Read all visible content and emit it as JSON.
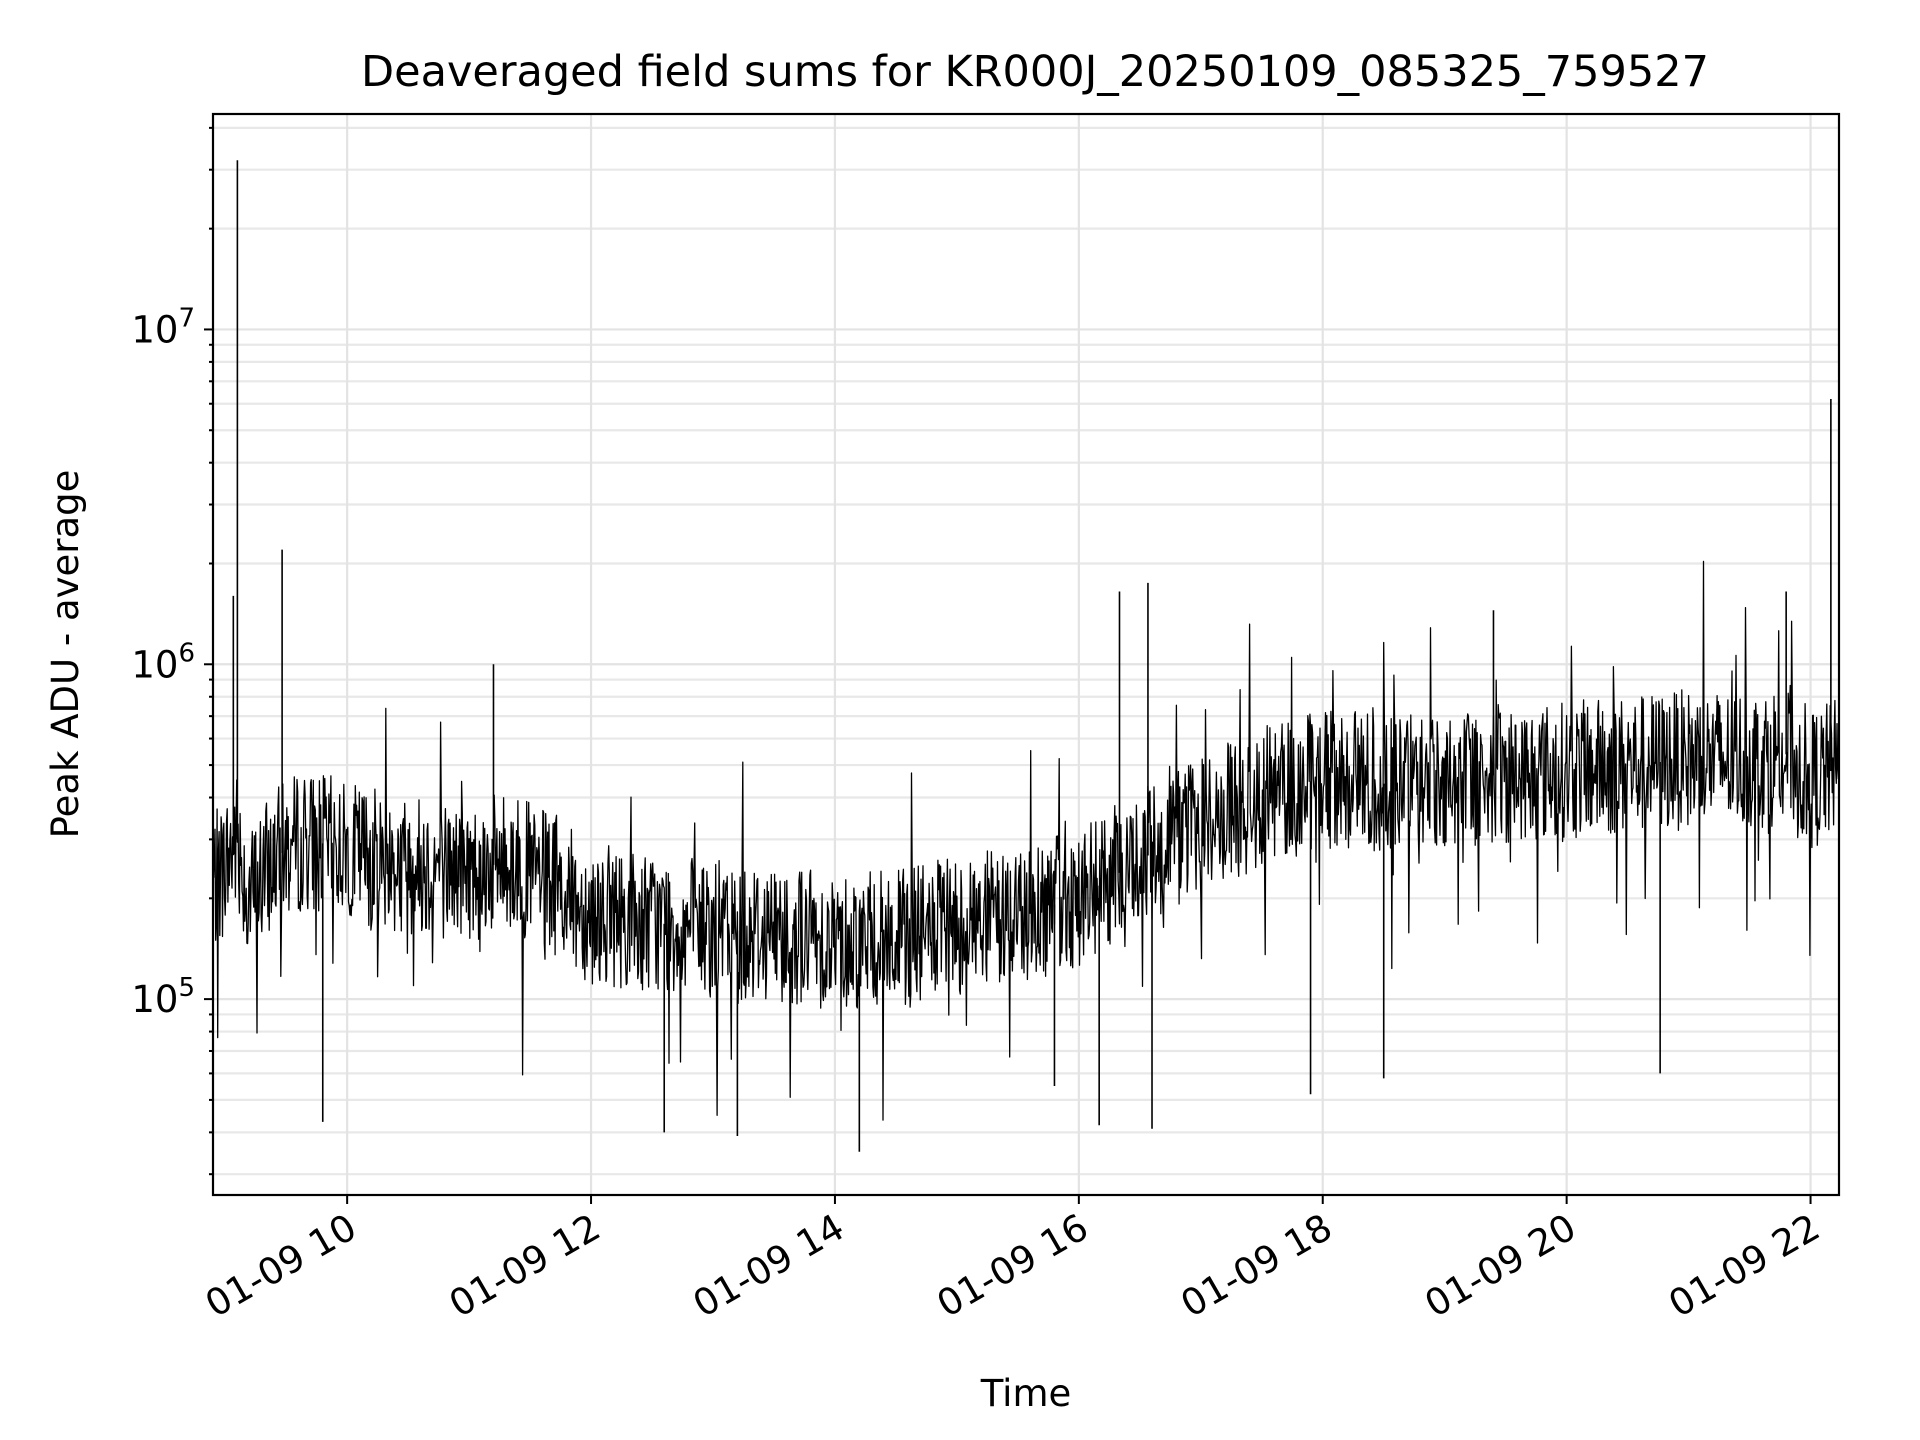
{
  "chart_data": {
    "type": "line",
    "title": "Deaveraged field sums for KR000J_20250109_085325_759527",
    "xlabel": "Time",
    "ylabel": "Peak ADU - average",
    "y_scale": "log",
    "ylim": [
      26000,
      44000000
    ],
    "xlim": [
      "01-09 08:54",
      "01-09 22:14"
    ],
    "x_ticks": [
      "01-09 10",
      "01-09 12",
      "01-09 14",
      "01-09 16",
      "01-09 18",
      "01-09 20",
      "01-09 22"
    ],
    "y_ticks": [
      {
        "value": 100000,
        "base": "10",
        "exp": "5"
      },
      {
        "value": 1000000,
        "base": "10",
        "exp": "6"
      },
      {
        "value": 10000000,
        "base": "10",
        "exp": "7"
      }
    ],
    "grid": true,
    "legend": "none",
    "series_color": "#000000",
    "series": [
      {
        "x": [
          "01-09 08:54",
          "01-09 09:00",
          "01-09 09:06",
          "01-09 09:12",
          "01-09 09:18",
          "01-09 09:24",
          "01-09 09:30",
          "01-09 09:40",
          "01-09 10:00",
          "01-09 10:20",
          "01-09 10:40",
          "01-09 11:00",
          "01-09 11:20",
          "01-09 11:40",
          "01-09 12:00",
          "01-09 12:30",
          "01-09 13:00",
          "01-09 13:30",
          "01-09 14:00",
          "01-09 14:30",
          "01-09 15:00",
          "01-09 15:30",
          "01-09 16:00",
          "01-09 16:30",
          "01-09 17:00",
          "01-09 17:30",
          "01-09 18:00",
          "01-09 18:30",
          "01-09 19:00",
          "01-09 19:30",
          "01-09 20:00",
          "01-09 20:30",
          "01-09 21:00",
          "01-09 21:30",
          "01-09 21:50",
          "01-09 22:00",
          "01-09 22:10",
          "01-09 22:14"
        ],
        "y": [
          220000,
          250000,
          300000,
          200000,
          230000,
          260000,
          280000,
          300000,
          280000,
          260000,
          250000,
          240000,
          260000,
          220000,
          180000,
          170000,
          160000,
          160000,
          150000,
          150000,
          165000,
          180000,
          200000,
          260000,
          330000,
          400000,
          460000,
          440000,
          450000,
          470000,
          480000,
          500000,
          520000,
          520000,
          540000,
          450000,
          480000,
          500000
        ],
        "spikes": [
          {
            "x": "01-09 09:06",
            "y": 32000000
          },
          {
            "x": "01-09 09:04",
            "y": 1600000
          },
          {
            "x": "01-09 09:28",
            "y": 2200000
          },
          {
            "x": "01-09 11:12",
            "y": 1000000
          },
          {
            "x": "01-09 16:20",
            "y": 1650000
          },
          {
            "x": "01-09 16:34",
            "y": 1750000
          },
          {
            "x": "01-09 19:24",
            "y": 1450000
          },
          {
            "x": "01-09 21:48",
            "y": 1650000
          },
          {
            "x": "01-09 22:10",
            "y": 6200000
          }
        ],
        "dips": [
          {
            "x": "01-09 09:48",
            "y": 43000
          },
          {
            "x": "01-09 12:36",
            "y": 40000
          },
          {
            "x": "01-09 13:12",
            "y": 39000
          },
          {
            "x": "01-09 14:12",
            "y": 35000
          },
          {
            "x": "01-09 15:48",
            "y": 55000
          },
          {
            "x": "01-09 16:10",
            "y": 42000
          },
          {
            "x": "01-09 16:36",
            "y": 41000
          },
          {
            "x": "01-09 17:54",
            "y": 52000
          },
          {
            "x": "01-09 18:30",
            "y": 58000
          },
          {
            "x": "01-09 20:46",
            "y": 60000
          }
        ]
      }
    ]
  }
}
